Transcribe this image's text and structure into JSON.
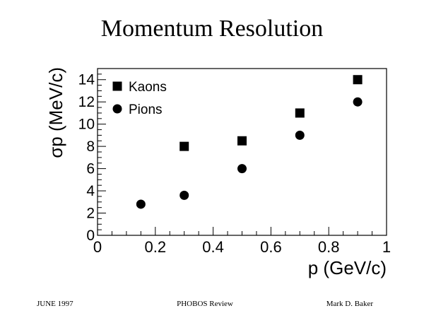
{
  "slide": {
    "title": "Momentum Resolution"
  },
  "footer": {
    "date": "JUNE 1997",
    "event": "PHOBOS Review",
    "author": "Mark D. Baker"
  },
  "chart_data": {
    "type": "scatter",
    "title": "",
    "xlabel": "p (GeV/c)",
    "ylabel": "σp (MeV/c)",
    "xlim": [
      0,
      1
    ],
    "ylim": [
      0,
      15
    ],
    "xticks": [
      0,
      0.2,
      0.4,
      0.6,
      0.8,
      1
    ],
    "xtick_labels": [
      "0",
      "0.2",
      "0.4",
      "0.6",
      "0.8",
      "1"
    ],
    "yticks": [
      0,
      2,
      4,
      6,
      8,
      10,
      12,
      14
    ],
    "ytick_labels": [
      "0",
      "2",
      "4",
      "6",
      "8",
      "10",
      "12",
      "14"
    ],
    "grid": false,
    "legend_position": "top-left",
    "series": [
      {
        "name": "Kaons",
        "marker": "square",
        "color": "#000000",
        "x": [
          0.3,
          0.5,
          0.7,
          0.9
        ],
        "y": [
          8,
          8.5,
          11,
          14
        ]
      },
      {
        "name": "Pions",
        "marker": "circle",
        "color": "#000000",
        "x": [
          0.15,
          0.3,
          0.5,
          0.7,
          0.9
        ],
        "y": [
          2.8,
          3.6,
          6,
          9,
          12
        ]
      }
    ]
  }
}
